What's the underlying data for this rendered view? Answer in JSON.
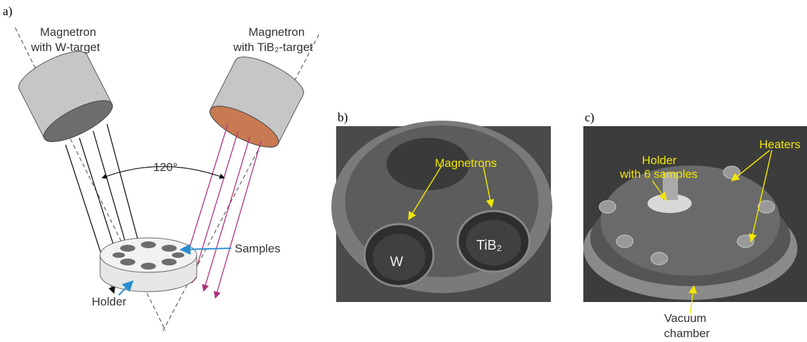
{
  "panel_a": {
    "label": "a)",
    "magnetron_w": [
      "Magnetron",
      "with W-target"
    ],
    "magnetron_tib2": [
      "Magnetron",
      "with TiB₂-target"
    ],
    "angle": "120°",
    "samples": "Samples",
    "holder": "Holder"
  },
  "panel_b": {
    "label": "b)",
    "magnetrons": "Magnetrons",
    "w": "W",
    "tib2": "TiB₂"
  },
  "panel_c": {
    "label": "c)",
    "heaters": "Heaters",
    "holder": [
      "Holder",
      "with 6 samples"
    ],
    "vacuum_chamber": [
      "Vacuum",
      "chamber"
    ]
  }
}
